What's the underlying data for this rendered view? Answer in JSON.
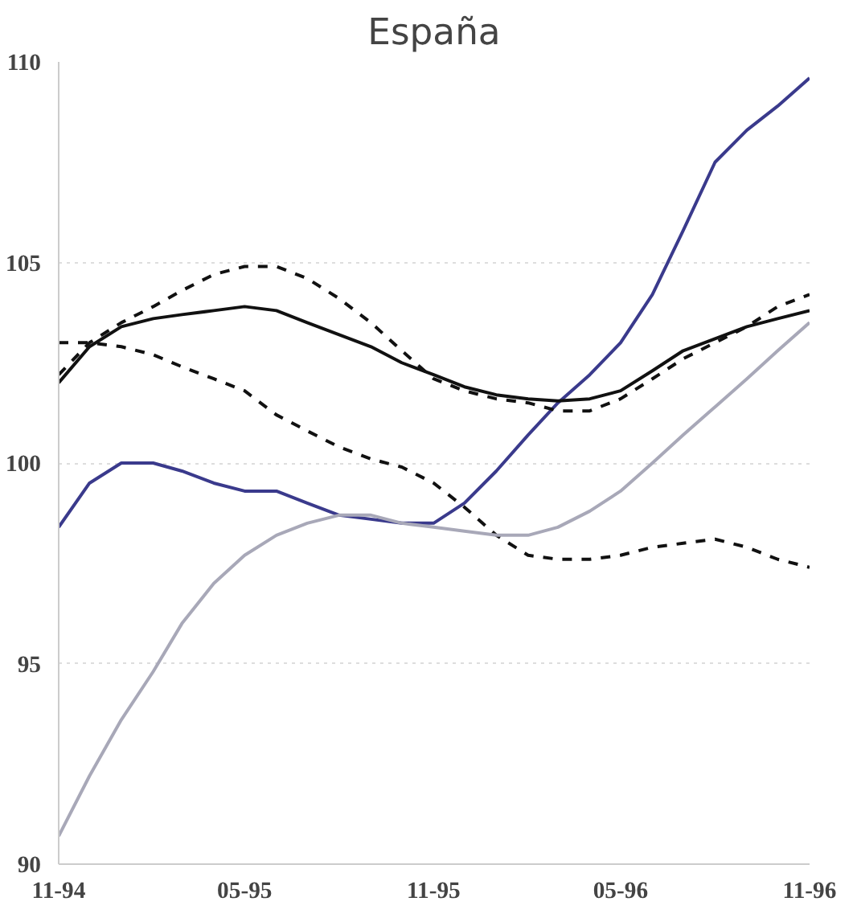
{
  "chart_data": {
    "type": "line",
    "title": "España",
    "x": [
      "1994-11",
      "1994-12",
      "1995-01",
      "1995-02",
      "1995-03",
      "1995-04",
      "1995-05",
      "1995-06",
      "1995-07",
      "1995-08",
      "1995-09",
      "1995-10",
      "1995-11",
      "1995-12",
      "1996-01",
      "1996-02",
      "1996-03",
      "1996-04",
      "1996-05",
      "1996-06",
      "1996-07",
      "1996-08",
      "1996-09",
      "1996-10",
      "1996-11"
    ],
    "series": [
      {
        "color": "#3a3a8c",
        "line_style": "solid",
        "values": [
          98.4,
          99.5,
          100,
          100,
          99.8,
          99.5,
          99.3,
          99.3,
          99.0,
          98.7,
          98.6,
          98.5,
          98.5,
          99.0,
          99.8,
          100.7,
          101.5,
          102.2,
          103.0,
          104.2,
          105.8,
          107.5,
          108.3,
          108.9,
          109.6
        ]
      },
      {
        "color": "#111111",
        "line_style": "solid",
        "values": [
          102.0,
          102.9,
          103.4,
          103.6,
          103.7,
          103.8,
          103.9,
          103.8,
          103.5,
          103.2,
          102.9,
          102.5,
          102.2,
          101.9,
          101.7,
          101.6,
          101.55,
          101.6,
          101.8,
          102.3,
          102.8,
          103.1,
          103.4,
          103.6,
          103.8
        ]
      },
      {
        "color": "#111111",
        "line_style": "dashed",
        "values": [
          102.2,
          103.0,
          103.5,
          103.9,
          104.3,
          104.7,
          104.9,
          104.9,
          104.6,
          104.1,
          103.5,
          102.8,
          102.1,
          101.8,
          101.6,
          101.5,
          101.3,
          101.3,
          101.6,
          102.1,
          102.6,
          103.0,
          103.4,
          103.9,
          104.2
        ]
      },
      {
        "color": "#111111",
        "line_style": "dashed",
        "values": [
          103.0,
          103.0,
          102.9,
          102.7,
          102.4,
          102.1,
          101.8,
          101.2,
          100.8,
          100.4,
          100.1,
          99.9,
          99.5,
          98.9,
          98.2,
          97.7,
          97.6,
          97.6,
          97.7,
          97.9,
          98.0,
          98.1,
          97.9,
          97.6,
          97.4
        ]
      },
      {
        "color": "#a8a8b8",
        "line_style": "solid",
        "values": [
          90.7,
          92.2,
          93.6,
          94.8,
          96.0,
          97.0,
          97.7,
          98.2,
          98.5,
          98.7,
          98.7,
          98.5,
          98.4,
          98.3,
          98.2,
          98.2,
          98.4,
          98.8,
          99.3,
          100.0,
          100.7,
          101.4,
          102.1,
          102.8,
          103.5
        ]
      }
    ],
    "xlim": [
      "1994-11",
      "1996-11"
    ],
    "xticks": [
      {
        "value": "1994-11",
        "label": "11-94"
      },
      {
        "value": "1995-05",
        "label": "05-95"
      },
      {
        "value": "1995-11",
        "label": "11-95"
      },
      {
        "value": "1996-05",
        "label": "05-96"
      },
      {
        "value": "1996-11",
        "label": "11-96"
      }
    ],
    "ylim": [
      90,
      110
    ],
    "yticks": [
      90,
      95,
      100,
      105,
      110
    ],
    "grid": "y"
  }
}
